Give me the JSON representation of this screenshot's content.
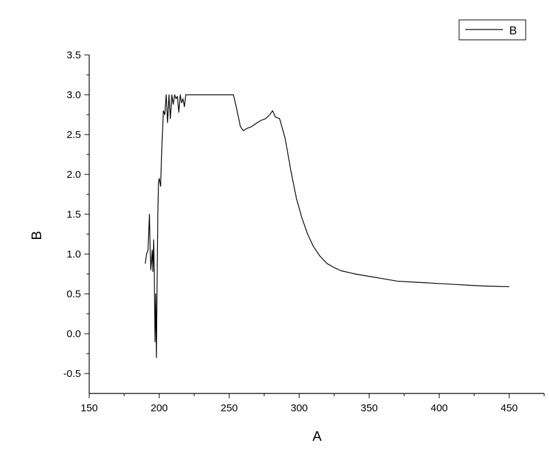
{
  "chart_data": {
    "type": "line",
    "title": "",
    "xlabel": "A",
    "ylabel": "B",
    "xlim": [
      150,
      475
    ],
    "ylim": [
      -0.75,
      3.5
    ],
    "xticks": [
      150,
      200,
      250,
      300,
      350,
      400,
      450
    ],
    "xtick_labels": [
      "150",
      "200",
      "250",
      "300",
      "350",
      "400",
      "450"
    ],
    "yticks": [
      -0.5,
      0.0,
      0.5,
      1.0,
      1.5,
      2.0,
      2.5,
      3.0,
      3.5
    ],
    "ytick_labels": [
      "-0.5",
      "0.0",
      "0.5",
      "1.0",
      "1.5",
      "2.0",
      "2.5",
      "3.0",
      "3.5"
    ],
    "grid": false,
    "legend_position": "top-right",
    "series": [
      {
        "name": "B",
        "color": "#000000",
        "x": [
          190,
          191,
          192,
          193,
          193.5,
          194,
          195,
          195.5,
          196,
          196.5,
          197,
          197.5,
          198,
          198.5,
          199,
          199.5,
          200,
          201,
          202,
          203,
          204,
          205,
          206,
          207,
          208,
          209,
          210,
          211,
          212,
          213,
          214,
          215,
          216,
          217,
          218,
          219,
          220,
          225,
          230,
          240,
          250,
          253,
          255,
          258,
          260,
          263,
          266,
          270,
          273,
          276,
          279,
          281,
          283,
          286,
          290,
          294,
          298,
          302,
          306,
          310,
          315,
          320,
          325,
          330,
          340,
          350,
          360,
          370,
          380,
          390,
          400,
          410,
          420,
          430,
          440,
          450
        ],
        "y": [
          0.88,
          1.0,
          1.05,
          1.5,
          1.1,
          0.8,
          1.05,
          0.78,
          1.18,
          0.75,
          -0.1,
          0.5,
          -0.3,
          0.65,
          1.5,
          1.9,
          1.95,
          1.85,
          2.4,
          2.8,
          2.75,
          3.0,
          2.65,
          3.0,
          2.7,
          3.0,
          2.88,
          3.0,
          2.95,
          2.98,
          2.78,
          3.0,
          2.9,
          2.95,
          2.85,
          3.0,
          3.0,
          3.0,
          3.0,
          3.0,
          3.0,
          3.0,
          2.85,
          2.6,
          2.55,
          2.58,
          2.6,
          2.65,
          2.68,
          2.7,
          2.75,
          2.8,
          2.72,
          2.7,
          2.45,
          2.05,
          1.7,
          1.45,
          1.25,
          1.1,
          0.97,
          0.88,
          0.83,
          0.79,
          0.75,
          0.72,
          0.69,
          0.66,
          0.65,
          0.64,
          0.63,
          0.62,
          0.61,
          0.6,
          0.595,
          0.59
        ]
      }
    ]
  }
}
